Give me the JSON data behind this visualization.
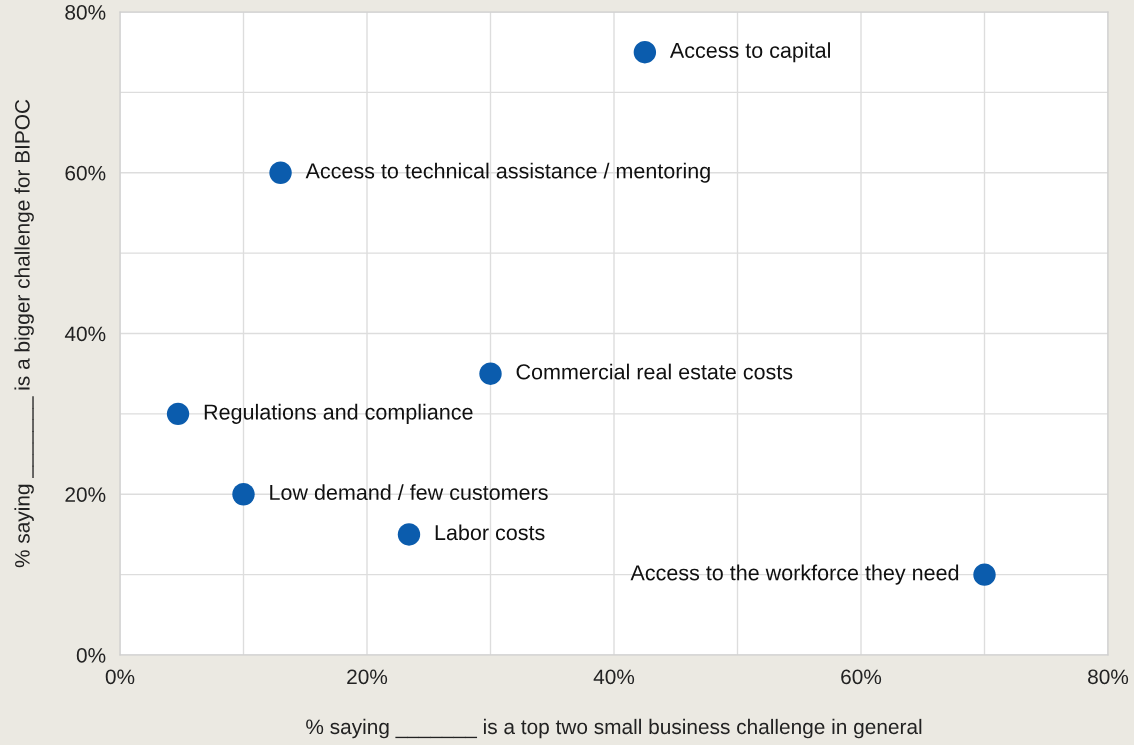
{
  "chart_data": {
    "type": "scatter",
    "xlabel": "% saying _______ is a top two small business challenge in general",
    "ylabel": "% saying _______ is a bigger challenge for BIPOC",
    "series": [
      {
        "color": "#0b5cad",
        "x": [
          42.5,
          13,
          30,
          4.7,
          10,
          23.4,
          70
        ],
        "values": [
          75,
          60,
          35,
          30,
          20,
          15,
          10
        ]
      }
    ],
    "annotations": [
      {
        "text": "Access to capital",
        "x": 42.5,
        "y": 75
      },
      {
        "text": "Access to technical assistance / mentoring",
        "x": 13,
        "y": 60
      },
      {
        "text": "Commercial real estate costs",
        "x": 30,
        "y": 35
      },
      {
        "text": "Regulations and compliance",
        "x": 4.7,
        "y": 30
      },
      {
        "text": "Low demand / few customers",
        "x": 10,
        "y": 20
      },
      {
        "text": "Labor costs",
        "x": 23.4,
        "y": 15
      },
      {
        "text": "Access to the workforce they need",
        "x": 70,
        "y": 10
      }
    ],
    "xlim": [
      0,
      80
    ],
    "ylim": [
      0,
      80
    ],
    "xticks": [
      {
        "value": 0,
        "label": "0%"
      },
      {
        "value": 10,
        "label": null
      },
      {
        "value": 20,
        "label": "20%"
      },
      {
        "value": 30,
        "label": null
      },
      {
        "value": 40,
        "label": "40%"
      },
      {
        "value": 50,
        "label": null
      },
      {
        "value": 60,
        "label": "60%"
      },
      {
        "value": 70,
        "label": null
      },
      {
        "value": 80,
        "label": "80%"
      }
    ],
    "yticks": [
      {
        "value": 0,
        "label": "0%"
      },
      {
        "value": 10,
        "label": null
      },
      {
        "value": 20,
        "label": "20%"
      },
      {
        "value": 30,
        "label": null
      },
      {
        "value": 40,
        "label": "40%"
      },
      {
        "value": 50,
        "label": null
      },
      {
        "value": 60,
        "label": "60%"
      },
      {
        "value": 70,
        "label": null
      },
      {
        "value": 80,
        "label": "80%"
      }
    ],
    "grid": true,
    "marker": "circle"
  }
}
